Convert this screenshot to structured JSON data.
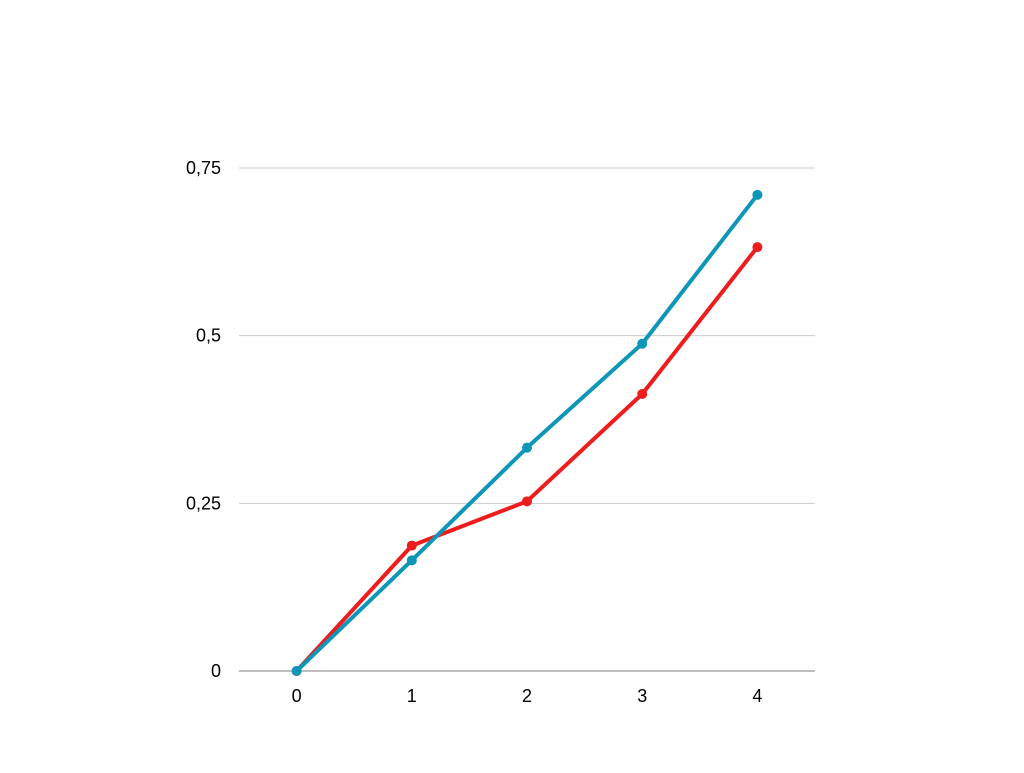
{
  "chart_data": {
    "type": "line",
    "x": [
      0,
      1,
      2,
      3,
      4
    ],
    "x_tick_labels": [
      "0",
      "1",
      "2",
      "3",
      "4"
    ],
    "y_tick_values": [
      0,
      0.25,
      0.5,
      0.75
    ],
    "y_tick_labels": [
      "0",
      "0,25",
      "0,5",
      "0,75"
    ],
    "ylim": [
      0,
      0.75
    ],
    "xlim": [
      -0.5,
      4.5
    ],
    "grid": true,
    "legend": "none",
    "series": [
      {
        "color": "#ee1c1c",
        "values": [
          0,
          0.187,
          0.253,
          0.413,
          0.632
        ]
      },
      {
        "color": "#0e96b8",
        "values": [
          0,
          0.165,
          0.333,
          0.488,
          0.71
        ]
      }
    ],
    "gridline_color": "#cccccc",
    "axis_color": "#999999"
  }
}
